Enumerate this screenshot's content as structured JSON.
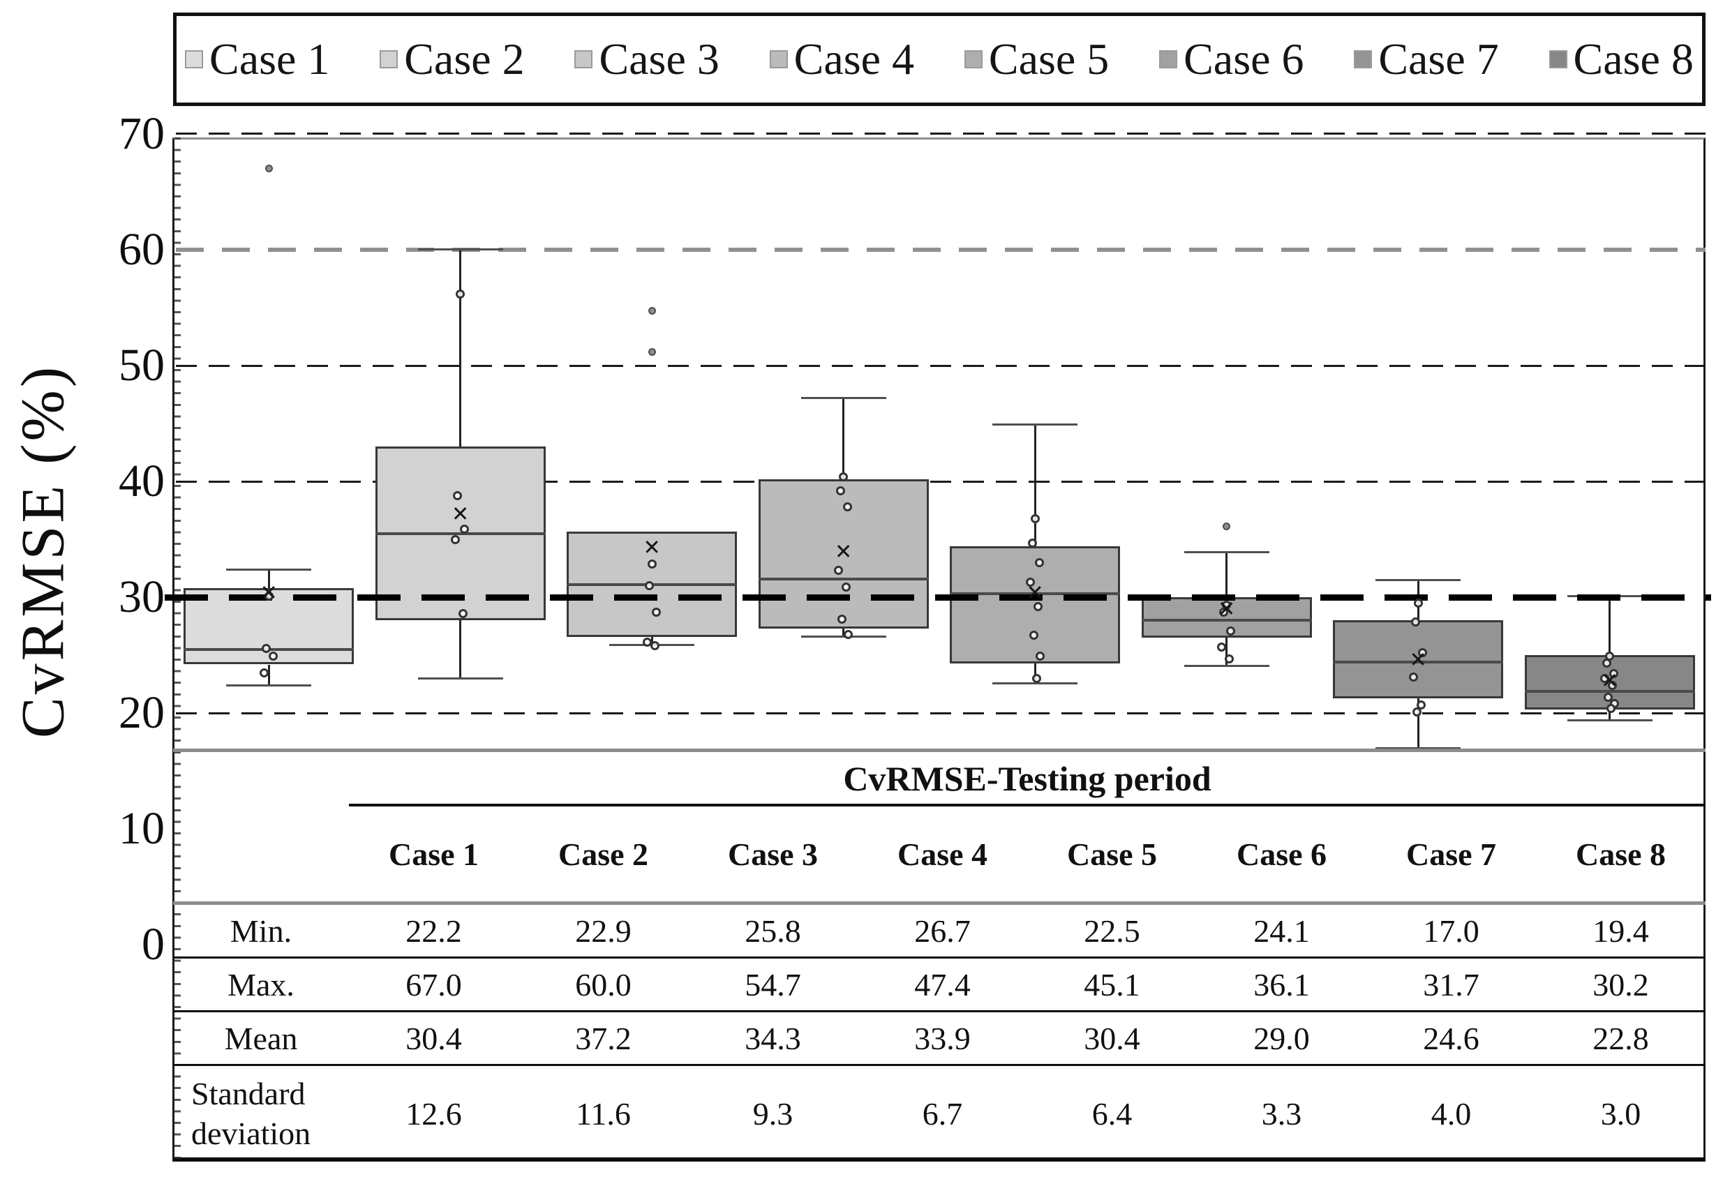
{
  "legend": {
    "items": [
      {
        "label": "Case 1",
        "color": "#dcdcdc"
      },
      {
        "label": "Case 2",
        "color": "#d2d2d2"
      },
      {
        "label": "Case 3",
        "color": "#c7c7c7"
      },
      {
        "label": "Case 4",
        "color": "#bbbbbb"
      },
      {
        "label": "Case 5",
        "color": "#aeaeae"
      },
      {
        "label": "Case 6",
        "color": "#a1a1a1"
      },
      {
        "label": "Case 7",
        "color": "#949494"
      },
      {
        "label": "Case 8",
        "color": "#878787"
      }
    ]
  },
  "y_axis": {
    "title": "CvRMSE (%)",
    "ticks": [
      70,
      60,
      50,
      40,
      30,
      20,
      10,
      0
    ]
  },
  "chart_data": {
    "type": "boxplot",
    "title": "",
    "xlabel": "",
    "ylabel": "CvRMSE (%)",
    "ylim": [
      0,
      70
    ],
    "legend_position": "top",
    "reference_line": {
      "value": 30,
      "style": "thick-black-dashed"
    },
    "gridlines": [
      {
        "value": 70,
        "style": "thin"
      },
      {
        "value": 60,
        "style": "thick-gray"
      },
      {
        "value": 50,
        "style": "thin"
      },
      {
        "value": 40,
        "style": "thin"
      },
      {
        "value": 20,
        "style": "thin"
      }
    ],
    "series": [
      {
        "name": "Case 1",
        "color": "#dcdcdc",
        "min": 22.2,
        "max": 67.0,
        "mean": 30.4,
        "std": 12.6,
        "q1": 24.2,
        "median": 25.5,
        "q3": 30.8,
        "whisker_low": 22.4,
        "whisker_high": 32.4,
        "outliers": [
          67.0
        ],
        "points": [
          30.1,
          25.6,
          24.9,
          23.5
        ]
      },
      {
        "name": "Case 2",
        "color": "#d2d2d2",
        "min": 22.9,
        "max": 60.0,
        "mean": 37.2,
        "std": 11.6,
        "q1": 28.0,
        "median": 35.5,
        "q3": 43.0,
        "whisker_low": 23.0,
        "whisker_high": 60.0,
        "outliers": [],
        "points": [
          56.2,
          38.8,
          35.9,
          35.0,
          28.6
        ]
      },
      {
        "name": "Case 3",
        "color": "#c7c7c7",
        "min": 25.8,
        "max": 54.7,
        "mean": 34.3,
        "std": 9.3,
        "q1": 26.6,
        "median": 31.1,
        "q3": 35.7,
        "whisker_low": 25.9,
        "whisker_high": 35.7,
        "outliers": [
          54.7,
          51.2
        ],
        "points": [
          32.9,
          31.0,
          28.7,
          26.1,
          25.8
        ]
      },
      {
        "name": "Case 4",
        "color": "#bbbbbb",
        "min": 26.7,
        "max": 47.4,
        "mean": 33.9,
        "std": 6.7,
        "q1": 27.3,
        "median": 31.6,
        "q3": 40.2,
        "whisker_low": 26.6,
        "whisker_high": 47.2,
        "outliers": [],
        "points": [
          40.4,
          39.2,
          37.8,
          32.3,
          30.9,
          28.1,
          26.8
        ]
      },
      {
        "name": "Case 5",
        "color": "#aeaeae",
        "min": 22.5,
        "max": 45.1,
        "mean": 30.4,
        "std": 6.4,
        "q1": 24.3,
        "median": 30.3,
        "q3": 34.4,
        "whisker_low": 22.6,
        "whisker_high": 44.9,
        "outliers": [],
        "points": [
          36.8,
          34.7,
          33.0,
          31.3,
          29.2,
          26.7,
          24.9,
          23.0
        ]
      },
      {
        "name": "Case 6",
        "color": "#a1a1a1",
        "min": 24.1,
        "max": 36.1,
        "mean": 29.0,
        "std": 3.3,
        "q1": 26.5,
        "median": 28.0,
        "q3": 30.0,
        "whisker_low": 24.1,
        "whisker_high": 33.9,
        "outliers": [
          36.1
        ],
        "points": [
          29.3,
          28.7,
          27.1,
          25.7,
          24.7
        ]
      },
      {
        "name": "Case 7",
        "color": "#949494",
        "min": 17.0,
        "max": 31.7,
        "mean": 24.6,
        "std": 4.0,
        "q1": 21.3,
        "median": 24.4,
        "q3": 28.0,
        "whisker_low": 17.0,
        "whisker_high": 31.5,
        "outliers": [],
        "points": [
          29.5,
          27.9,
          25.2,
          23.1,
          20.7,
          20.1
        ]
      },
      {
        "name": "Case 8",
        "color": "#878787",
        "min": 19.4,
        "max": 30.2,
        "mean": 22.8,
        "std": 3.0,
        "q1": 20.3,
        "median": 21.9,
        "q3": 25.0,
        "whisker_low": 19.4,
        "whisker_high": 30.1,
        "outliers": [],
        "points": [
          24.9,
          24.3,
          23.4,
          23.0,
          22.4,
          21.4,
          20.8,
          20.4
        ]
      }
    ]
  },
  "table": {
    "title": "CvRMSE-Testing period",
    "columns": [
      "Case 1",
      "Case 2",
      "Case 3",
      "Case 4",
      "Case 5",
      "Case 6",
      "Case 7",
      "Case 8"
    ],
    "rows": [
      {
        "label": "Min.",
        "values": [
          "22.2",
          "22.9",
          "25.8",
          "26.7",
          "22.5",
          "24.1",
          "17.0",
          "19.4"
        ]
      },
      {
        "label": "Max.",
        "values": [
          "67.0",
          "60.0",
          "54.7",
          "47.4",
          "45.1",
          "36.1",
          "31.7",
          "30.2"
        ]
      },
      {
        "label": "Mean",
        "values": [
          "30.4",
          "37.2",
          "34.3",
          "33.9",
          "30.4",
          "29.0",
          "24.6",
          "22.8"
        ]
      },
      {
        "label": "Standard\ndeviation",
        "values": [
          "12.6",
          "11.6",
          "9.3",
          "6.7",
          "6.4",
          "3.3",
          "4.0",
          "3.0"
        ]
      }
    ]
  }
}
